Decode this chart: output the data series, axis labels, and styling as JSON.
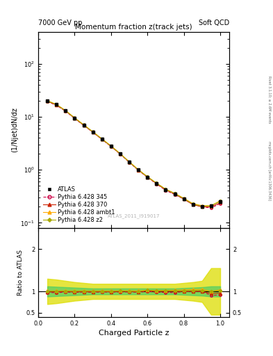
{
  "title": "Momentum fraction z(track jets)",
  "top_left_label": "7000 GeV pp",
  "top_right_label": "Soft QCD",
  "right_label_top": "Rivet 3.1.10; ≥ 2.6M events",
  "right_label_bottom": "mcplots.cern.ch [arXiv:1306.3436]",
  "watermark": "ATLAS_2011_I919017",
  "ylabel_main": "(1/Njet)dN/dz",
  "ylabel_ratio": "Ratio to ATLAS",
  "xlabel": "Charged Particle z",
  "xlim": [
    0.0,
    1.05
  ],
  "ylim_main": [
    0.08,
    400
  ],
  "ylim_ratio": [
    0.4,
    2.5
  ],
  "z_values": [
    0.05,
    0.1,
    0.15,
    0.2,
    0.25,
    0.3,
    0.35,
    0.4,
    0.45,
    0.5,
    0.55,
    0.6,
    0.65,
    0.7,
    0.75,
    0.8,
    0.85,
    0.9,
    0.95,
    1.0
  ],
  "atlas_data": [
    20.0,
    17.0,
    13.0,
    9.5,
    7.0,
    5.2,
    3.8,
    2.8,
    2.0,
    1.4,
    1.0,
    0.72,
    0.55,
    0.42,
    0.35,
    0.28,
    0.22,
    0.2,
    0.21,
    0.25
  ],
  "atlas_errors": [
    1.0,
    0.8,
    0.6,
    0.5,
    0.35,
    0.26,
    0.19,
    0.14,
    0.1,
    0.07,
    0.05,
    0.036,
    0.028,
    0.021,
    0.018,
    0.014,
    0.011,
    0.01,
    0.011,
    0.013
  ],
  "py345_data": [
    19.5,
    16.5,
    12.8,
    9.3,
    6.9,
    5.1,
    3.75,
    2.75,
    1.98,
    1.38,
    0.98,
    0.72,
    0.54,
    0.41,
    0.34,
    0.28,
    0.22,
    0.2,
    0.19,
    0.23
  ],
  "py370_data": [
    19.8,
    16.8,
    13.0,
    9.4,
    6.95,
    5.15,
    3.78,
    2.78,
    2.0,
    1.4,
    0.99,
    0.73,
    0.55,
    0.42,
    0.35,
    0.28,
    0.22,
    0.2,
    0.2,
    0.24
  ],
  "pyambt1_data": [
    20.2,
    17.2,
    13.2,
    9.6,
    7.1,
    5.25,
    3.85,
    2.83,
    2.03,
    1.42,
    1.01,
    0.74,
    0.56,
    0.43,
    0.36,
    0.29,
    0.23,
    0.21,
    0.21,
    0.26
  ],
  "pyz2_data": [
    20.1,
    17.1,
    13.1,
    9.55,
    7.05,
    5.22,
    3.82,
    2.81,
    2.02,
    1.41,
    1.0,
    0.74,
    0.56,
    0.43,
    0.355,
    0.285,
    0.225,
    0.205,
    0.21,
    0.255
  ],
  "py345_ratio": [
    0.975,
    0.97,
    0.985,
    0.979,
    0.986,
    0.981,
    0.987,
    0.982,
    0.99,
    0.986,
    0.98,
    1.0,
    0.982,
    0.976,
    0.971,
    1.0,
    1.0,
    1.0,
    0.905,
    0.92
  ],
  "py370_ratio": [
    0.99,
    0.988,
    1.0,
    0.989,
    0.993,
    0.99,
    0.995,
    0.993,
    1.0,
    1.0,
    0.99,
    1.014,
    1.0,
    1.0,
    1.0,
    1.0,
    1.0,
    1.0,
    0.952,
    0.96
  ],
  "pyambt1_ratio": [
    1.01,
    1.012,
    1.015,
    1.011,
    1.014,
    1.01,
    1.013,
    1.011,
    1.015,
    1.014,
    1.01,
    1.028,
    1.018,
    1.024,
    1.029,
    1.036,
    1.045,
    1.05,
    1.0,
    1.04
  ],
  "pyz2_ratio": [
    1.005,
    1.006,
    1.008,
    1.005,
    1.007,
    1.004,
    1.005,
    1.004,
    1.01,
    1.007,
    1.0,
    1.028,
    1.018,
    1.024,
    1.014,
    1.018,
    1.023,
    1.025,
    1.0,
    1.02
  ],
  "band_green_low": [
    0.88,
    0.89,
    0.9,
    0.91,
    0.92,
    0.93,
    0.93,
    0.93,
    0.93,
    0.93,
    0.93,
    0.93,
    0.93,
    0.93,
    0.93,
    0.92,
    0.91,
    0.9,
    0.88,
    0.88
  ],
  "band_green_high": [
    1.12,
    1.11,
    1.1,
    1.09,
    1.08,
    1.07,
    1.07,
    1.07,
    1.07,
    1.07,
    1.07,
    1.07,
    1.07,
    1.07,
    1.07,
    1.08,
    1.09,
    1.1,
    1.12,
    1.12
  ],
  "band_yellow_low": [
    0.7,
    0.72,
    0.75,
    0.78,
    0.8,
    0.82,
    0.82,
    0.82,
    0.82,
    0.82,
    0.82,
    0.82,
    0.82,
    0.82,
    0.82,
    0.8,
    0.78,
    0.75,
    0.45,
    0.45
  ],
  "band_yellow_high": [
    1.3,
    1.28,
    1.25,
    1.22,
    1.2,
    1.18,
    1.18,
    1.18,
    1.18,
    1.18,
    1.18,
    1.18,
    1.18,
    1.18,
    1.18,
    1.2,
    1.22,
    1.25,
    1.55,
    1.55
  ],
  "color_345": "#cc0044",
  "color_370": "#cc2200",
  "color_ambt1": "#ffaa00",
  "color_z2": "#aaaa00",
  "color_atlas": "black",
  "color_band_green": "#44cc66",
  "color_band_yellow": "#dddd00"
}
